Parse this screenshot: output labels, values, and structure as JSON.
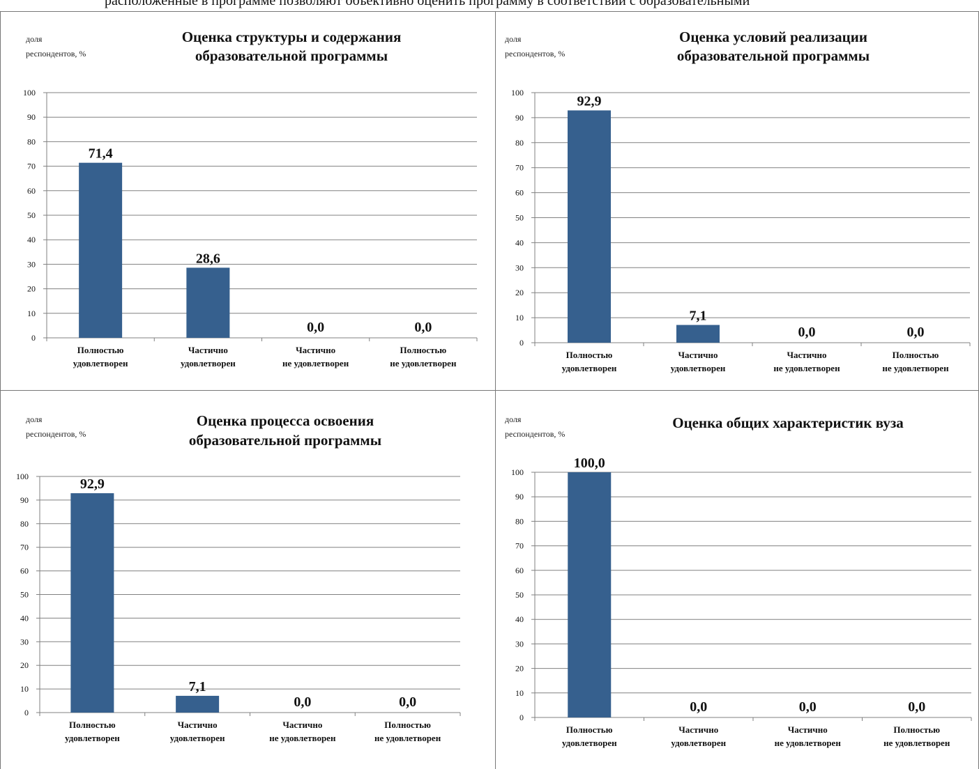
{
  "header_snippet": "расположенные в программе позволяют объективно оценить программу в соответствии с образовательными",
  "colors": {
    "bar": "#36608E",
    "grid": "#808080",
    "axis": "#808080"
  },
  "chart_data": [
    {
      "type": "bar",
      "title": "Оценка структуры и содержания образовательной программы",
      "title_lines": [
        "Оценка структуры и содержания",
        "образовательной программы"
      ],
      "ylabel": "доля респондентов, %",
      "ylabel_lines": [
        "доля",
        "респондентов, %"
      ],
      "ylim": [
        0,
        100
      ],
      "yticks": [
        "0",
        "10",
        "20",
        "30",
        "40",
        "50",
        "60",
        "70",
        "80",
        "90",
        "100"
      ],
      "grid": true,
      "categories": [
        [
          "Полностью",
          "удовлетворен"
        ],
        [
          "Частично",
          "удовлетворен"
        ],
        [
          "Частично",
          "не удовлетворен"
        ],
        [
          "Полностью",
          "не удовлетворен"
        ]
      ],
      "values": [
        71.4,
        28.6,
        0.0,
        0.0
      ],
      "labels": [
        "71,4",
        "28,6",
        "0,0",
        "0,0"
      ]
    },
    {
      "type": "bar",
      "title": "Оценка условий реализации образовательной программы",
      "title_lines": [
        "Оценка условий реализации",
        "образовательной программы"
      ],
      "ylabel": "доля респондентов, %",
      "ylabel_lines": [
        "доля",
        "респондентов, %"
      ],
      "ylim": [
        0,
        100
      ],
      "yticks": [
        "0",
        "10",
        "20",
        "30",
        "40",
        "50",
        "60",
        "70",
        "80",
        "90",
        "100"
      ],
      "grid": true,
      "categories": [
        [
          "Полностью",
          "удовлетворен"
        ],
        [
          "Частично",
          "удовлетворен"
        ],
        [
          "Частично",
          "не удовлетворен"
        ],
        [
          "Полностью",
          "не удовлетворен"
        ]
      ],
      "values": [
        92.9,
        7.1,
        0.0,
        0.0
      ],
      "labels": [
        "92,9",
        "7,1",
        "0,0",
        "0,0"
      ]
    },
    {
      "type": "bar",
      "title": "Оценка процесса освоения образовательной программы",
      "title_lines": [
        "Оценка процесса освоения",
        "образовательной программы"
      ],
      "ylabel": "доля респондентов, %",
      "ylabel_lines": [
        "доля",
        "респондентов, %"
      ],
      "ylim": [
        0,
        100
      ],
      "yticks": [
        "0",
        "10",
        "20",
        "30",
        "40",
        "50",
        "60",
        "70",
        "80",
        "90",
        "100"
      ],
      "grid": true,
      "categories": [
        [
          "Полностью",
          "удовлетворен"
        ],
        [
          "Частично",
          "удовлетворен"
        ],
        [
          "Частично",
          "не удовлетворен"
        ],
        [
          "Полностью",
          "не удовлетворен"
        ]
      ],
      "values": [
        92.9,
        7.1,
        0.0,
        0.0
      ],
      "labels": [
        "92,9",
        "7,1",
        "0,0",
        "0,0"
      ]
    },
    {
      "type": "bar",
      "title": "Оценка общих характеристик вуза",
      "title_lines": [
        "Оценка общих характеристик вуза"
      ],
      "ylabel": "доля респондентов, %",
      "ylabel_lines": [
        "доля",
        "респондентов, %"
      ],
      "ylim": [
        0,
        100
      ],
      "yticks": [
        "0",
        "10",
        "20",
        "30",
        "40",
        "50",
        "60",
        "70",
        "80",
        "90",
        "100"
      ],
      "grid": true,
      "categories": [
        [
          "Полностью",
          "удовлетворен"
        ],
        [
          "Частично",
          "удовлетворен"
        ],
        [
          "Частично",
          "не удовлетворен"
        ],
        [
          "Полностью",
          "не удовлетворен"
        ]
      ],
      "values": [
        100.0,
        0.0,
        0.0,
        0.0
      ],
      "labels": [
        "100,0",
        "0,0",
        "0,0",
        "0,0"
      ]
    }
  ]
}
